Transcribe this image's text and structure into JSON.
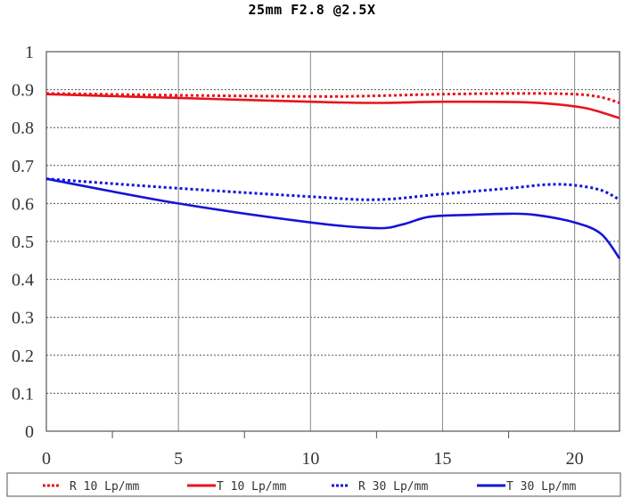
{
  "chart_data": {
    "type": "line",
    "title": "25mm F2.8  @2.5X",
    "xlabel": "",
    "ylabel": "",
    "xlim": [
      0,
      21.7
    ],
    "ylim": [
      0,
      1
    ],
    "x_ticks": [
      "0",
      "5",
      "10",
      "15",
      "20"
    ],
    "x_tick_values": [
      0,
      5,
      10,
      15,
      20
    ],
    "x_minor_ticks": [
      2.5,
      7.5,
      12.5,
      17.5
    ],
    "y_ticks": [
      "0",
      "0.1",
      "0.2",
      "0.3",
      "0.4",
      "0.5",
      "0.6",
      "0.7",
      "0.8",
      "0.9",
      "1"
    ],
    "y_tick_values": [
      0,
      0.1,
      0.2,
      0.3,
      0.4,
      0.5,
      0.6,
      0.7,
      0.8,
      0.9,
      1
    ],
    "grid": "horizontal dotted, vertical solid",
    "legend_placement": "bottom",
    "series": [
      {
        "name": "R 10 Lp/mm",
        "color": "#e8141c",
        "style": "dotted",
        "x": [
          0,
          5,
          10,
          12,
          15,
          18,
          20,
          21,
          21.7
        ],
        "y": [
          0.89,
          0.885,
          0.882,
          0.883,
          0.888,
          0.89,
          0.888,
          0.88,
          0.865
        ]
      },
      {
        "name": "T 10 Lp/mm",
        "color": "#e8141c",
        "style": "solid",
        "x": [
          0,
          5,
          10,
          12.5,
          15,
          18,
          19.5,
          20.5,
          21.7
        ],
        "y": [
          0.888,
          0.878,
          0.868,
          0.865,
          0.868,
          0.867,
          0.86,
          0.85,
          0.825
        ]
      },
      {
        "name": "R 30 Lp/mm",
        "color": "#1414d8",
        "style": "dotted",
        "x": [
          0,
          5,
          10,
          12.5,
          15,
          17.5,
          19,
          20,
          21,
          21.7
        ],
        "y": [
          0.665,
          0.64,
          0.618,
          0.61,
          0.625,
          0.64,
          0.65,
          0.648,
          0.635,
          0.61
        ]
      },
      {
        "name": "T 30 Lp/mm",
        "color": "#1414d8",
        "style": "solid",
        "x": [
          0,
          5,
          10,
          12.5,
          13.5,
          14.5,
          16,
          17.5,
          18.5,
          20,
          21,
          21.7
        ],
        "y": [
          0.665,
          0.6,
          0.55,
          0.535,
          0.545,
          0.565,
          0.57,
          0.573,
          0.57,
          0.55,
          0.52,
          0.455
        ]
      }
    ]
  }
}
